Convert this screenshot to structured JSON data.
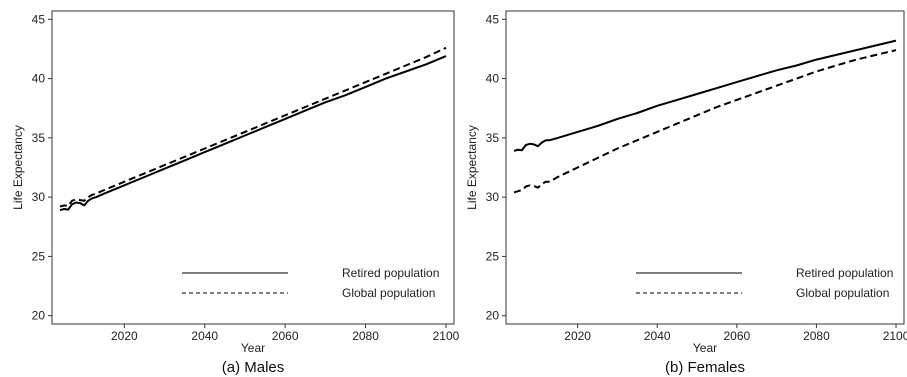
{
  "chart_data": [
    {
      "type": "line",
      "caption": "(a) Males",
      "xlabel": "Year",
      "ylabel": "Life Expectancy",
      "xlim": [
        2002,
        2102
      ],
      "ylim": [
        19.3,
        45.7
      ],
      "xticks": [
        2020,
        2040,
        2060,
        2080,
        2100
      ],
      "yticks": [
        20,
        25,
        30,
        35,
        40,
        45
      ],
      "grid": false,
      "legend_position": "bottom-right",
      "series": [
        {
          "name": "Retired population",
          "style": "solid",
          "x": [
            2004,
            2005,
            2006,
            2007,
            2008,
            2009,
            2010,
            2011,
            2012,
            2013,
            2015,
            2020,
            2025,
            2030,
            2035,
            2040,
            2045,
            2050,
            2055,
            2060,
            2065,
            2070,
            2075,
            2080,
            2085,
            2090,
            2095,
            2100
          ],
          "values": [
            28.9,
            29.0,
            28.95,
            29.4,
            29.55,
            29.5,
            29.3,
            29.7,
            29.9,
            30.0,
            30.3,
            31.0,
            31.7,
            32.4,
            33.1,
            33.8,
            34.5,
            35.2,
            35.9,
            36.6,
            37.3,
            38.0,
            38.6,
            39.3,
            40.0,
            40.6,
            41.2,
            41.9
          ]
        },
        {
          "name": "Global population",
          "style": "dashed",
          "x": [
            2004,
            2005,
            2006,
            2007,
            2008,
            2009,
            2010,
            2011,
            2012,
            2013,
            2015,
            2020,
            2025,
            2030,
            2035,
            2040,
            2045,
            2050,
            2055,
            2060,
            2065,
            2070,
            2075,
            2080,
            2085,
            2090,
            2095,
            2100
          ],
          "values": [
            29.2,
            29.3,
            29.25,
            29.7,
            29.8,
            29.75,
            29.7,
            30.0,
            30.2,
            30.3,
            30.6,
            31.3,
            32.0,
            32.7,
            33.4,
            34.1,
            34.8,
            35.5,
            36.2,
            36.9,
            37.6,
            38.3,
            39.0,
            39.7,
            40.4,
            41.1,
            41.8,
            42.6
          ]
        }
      ]
    },
    {
      "type": "line",
      "caption": "(b) Females",
      "xlabel": "Year",
      "ylabel": "Life Expectancy",
      "xlim": [
        2002,
        2102
      ],
      "ylim": [
        19.3,
        45.7
      ],
      "xticks": [
        2020,
        2040,
        2060,
        2080,
        2100
      ],
      "yticks": [
        20,
        25,
        30,
        35,
        40,
        45
      ],
      "grid": false,
      "legend_position": "bottom-right",
      "series": [
        {
          "name": "Retired population",
          "style": "solid",
          "x": [
            2004,
            2005,
            2006,
            2007,
            2008,
            2009,
            2010,
            2011,
            2012,
            2013,
            2015,
            2020,
            2025,
            2030,
            2035,
            2040,
            2045,
            2050,
            2055,
            2060,
            2065,
            2070,
            2075,
            2080,
            2085,
            2090,
            2095,
            2100
          ],
          "values": [
            33.9,
            34.0,
            33.95,
            34.4,
            34.5,
            34.45,
            34.3,
            34.6,
            34.8,
            34.8,
            35.0,
            35.5,
            36.0,
            36.6,
            37.1,
            37.7,
            38.2,
            38.7,
            39.2,
            39.7,
            40.2,
            40.7,
            41.1,
            41.6,
            42.0,
            42.4,
            42.8,
            43.2
          ]
        },
        {
          "name": "Global population",
          "style": "dashed",
          "x": [
            2004,
            2005,
            2006,
            2007,
            2008,
            2009,
            2010,
            2011,
            2012,
            2013,
            2015,
            2020,
            2025,
            2030,
            2035,
            2040,
            2045,
            2050,
            2055,
            2060,
            2065,
            2070,
            2075,
            2080,
            2085,
            2090,
            2095,
            2100
          ],
          "values": [
            30.4,
            30.5,
            30.6,
            30.9,
            31.0,
            30.95,
            30.8,
            31.1,
            31.3,
            31.3,
            31.7,
            32.5,
            33.3,
            34.1,
            34.8,
            35.5,
            36.2,
            36.9,
            37.6,
            38.2,
            38.8,
            39.4,
            40.0,
            40.6,
            41.1,
            41.6,
            42.0,
            42.4
          ]
        }
      ]
    }
  ]
}
